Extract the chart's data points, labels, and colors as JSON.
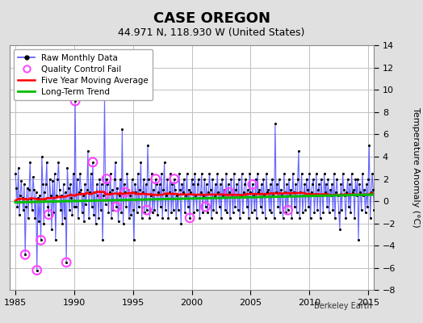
{
  "title": "CASE OREGON",
  "subtitle": "44.971 N, 118.930 W (United States)",
  "ylabel": "Temperature Anomaly (°C)",
  "credit": "Berkeley Earth",
  "xlim": [
    1984.5,
    2015.5
  ],
  "ylim": [
    -8,
    14
  ],
  "yticks": [
    -8,
    -6,
    -4,
    -2,
    0,
    2,
    4,
    6,
    8,
    10,
    12,
    14
  ],
  "xticks": [
    1985,
    1990,
    1995,
    2000,
    2005,
    2010,
    2015
  ],
  "raw_color": "#5555ff",
  "raw_marker_color": "#000000",
  "qc_color": "#ff44ff",
  "ma_color": "#ff0000",
  "trend_color": "#00bb00",
  "bg_color": "#e0e0e0",
  "plot_bg_color": "#ffffff",
  "grid_color": "#c0c0c0",
  "title_fontsize": 13,
  "subtitle_fontsize": 9,
  "label_fontsize": 8,
  "tick_fontsize": 8,
  "legend_loc": "upper left",
  "raw_values": [
    2.5,
    1.2,
    -0.5,
    3.0,
    -1.2,
    0.5,
    1.8,
    0.3,
    -0.8,
    1.5,
    -4.8,
    -0.5,
    1.2,
    -1.5,
    1.0,
    3.5,
    0.2,
    -0.8,
    2.2,
    1.0,
    -1.5,
    0.8,
    -6.2,
    0.3,
    -1.8,
    0.5,
    -3.5,
    4.0,
    1.5,
    -2.0,
    0.8,
    1.5,
    3.5,
    -0.5,
    -1.2,
    2.0,
    0.5,
    -2.5,
    1.8,
    -1.0,
    2.5,
    -3.5,
    0.5,
    2.0,
    3.5,
    1.0,
    -0.8,
    0.5,
    -2.0,
    1.5,
    -1.5,
    0.8,
    -5.5,
    3.0,
    1.2,
    -0.8,
    1.5,
    0.3,
    -1.2,
    2.5,
    -0.5,
    9.0,
    -0.5,
    2.0,
    -1.5,
    0.8,
    2.5,
    1.0,
    -1.0,
    0.5,
    -1.8,
    1.5,
    -0.3,
    1.0,
    4.5,
    -1.5,
    0.8,
    2.5,
    -0.5,
    3.5,
    -1.2,
    0.8,
    -2.0,
    1.5,
    0.5,
    -1.5,
    2.0,
    -0.8,
    1.5,
    -3.5,
    0.5,
    9.5,
    -0.3,
    2.0,
    1.5,
    -1.0,
    0.8,
    2.5,
    -1.5,
    1.0,
    -0.8,
    2.0,
    3.5,
    -0.5,
    1.2,
    -1.8,
    0.5,
    2.0,
    -1.0,
    6.5,
    -2.0,
    1.5,
    0.8,
    -0.5,
    2.5,
    1.0,
    -1.5,
    0.5,
    -1.2,
    2.0,
    -0.8,
    -3.5,
    1.5,
    0.8,
    -1.0,
    2.5,
    -0.5,
    1.0,
    3.5,
    -1.5,
    0.8,
    2.0,
    -1.0,
    1.5,
    -0.8,
    5.0,
    2.0,
    -1.5,
    0.5,
    2.5,
    -1.0,
    1.0,
    -0.8,
    2.0,
    1.5,
    -1.2,
    0.8,
    1.5,
    -0.5,
    2.5,
    -1.5,
    1.0,
    3.5,
    -0.8,
    0.5,
    2.0,
    -1.5,
    0.8,
    2.5,
    -1.0,
    1.5,
    -0.8,
    2.0,
    1.0,
    -1.5,
    0.5,
    -0.8,
    2.5,
    1.0,
    -2.0,
    1.5,
    0.8,
    2.0,
    -1.0,
    0.5,
    2.5,
    -0.5,
    1.0,
    -1.5,
    0.8,
    2.0,
    1.5,
    -1.0,
    2.5,
    0.5,
    -0.8,
    1.5,
    2.0,
    -1.5,
    0.8,
    2.5,
    -1.0,
    0.5,
    2.0,
    -0.5,
    1.5,
    -1.0,
    0.8,
    2.5,
    1.0,
    -1.5,
    2.0,
    -0.8,
    0.5,
    1.5,
    -1.0,
    2.5,
    0.8,
    -0.5,
    1.5,
    -1.5,
    2.0,
    0.5,
    1.0,
    -0.8,
    2.5,
    -1.0,
    1.5,
    0.8,
    -1.5,
    2.0,
    0.5,
    -1.0,
    2.5,
    -0.5,
    1.0,
    1.5,
    -0.8,
    2.0,
    -1.5,
    0.5,
    2.5,
    -1.0,
    0.8,
    1.5,
    2.0,
    -0.5,
    1.0,
    -1.5,
    2.5,
    0.8,
    -1.0,
    1.5,
    0.5,
    -0.8,
    2.0,
    -1.5,
    2.5,
    0.8,
    1.0,
    -0.5,
    1.5,
    -1.0,
    2.0,
    0.5,
    -1.5,
    2.5,
    0.8,
    1.0,
    -0.8,
    1.5,
    -1.0,
    2.0,
    0.5,
    -1.5,
    7.0,
    0.8,
    1.5,
    -0.5,
    2.0,
    -1.0,
    1.0,
    0.5,
    -1.5,
    2.5,
    0.8,
    -1.0,
    1.5,
    -0.8,
    2.0,
    0.5,
    1.0,
    -1.5,
    2.5,
    0.8,
    -0.5,
    1.5,
    -1.0,
    2.0,
    4.5,
    -1.5,
    0.8,
    2.5,
    -1.0,
    0.5,
    1.5,
    -0.8,
    2.0,
    1.0,
    -0.5,
    2.5,
    -1.5,
    0.8,
    1.5,
    2.0,
    -1.0,
    0.5,
    2.5,
    -0.8,
    1.0,
    1.5,
    -1.5,
    2.0,
    0.5,
    -1.0,
    2.5,
    0.8,
    1.5,
    -0.5,
    2.0,
    -1.0,
    1.0,
    0.5,
    1.5,
    -0.8,
    2.5,
    -1.5,
    0.8,
    2.0,
    0.5,
    -1.0,
    -2.5,
    1.5,
    -0.8,
    2.5,
    1.0,
    0.5,
    -1.5,
    0.8,
    2.0,
    -0.5,
    1.5,
    -1.0,
    2.5,
    0.8,
    1.0,
    -1.5,
    2.0,
    0.5,
    2.0,
    -3.5,
    1.5,
    0.8,
    -0.8,
    2.5,
    0.5,
    1.0,
    -1.0,
    1.5,
    -0.5,
    2.0,
    5.0,
    -1.5,
    0.8,
    2.5,
    1.0,
    -0.8,
    1.5,
    0.5,
    2.0,
    -1.0,
    0.8,
    1.5,
    2.0,
    -1.5,
    0.5,
    1.8,
    -0.8,
    2.5,
    0.5,
    1.0,
    -1.0,
    1.5,
    2.0
  ],
  "qc_fail_indices": [
    10,
    22,
    26,
    34,
    52,
    61,
    79,
    90,
    93,
    103,
    112,
    134,
    143,
    162,
    178,
    194,
    218,
    242,
    278
  ],
  "n_months": 372,
  "start_year": 1985.0
}
